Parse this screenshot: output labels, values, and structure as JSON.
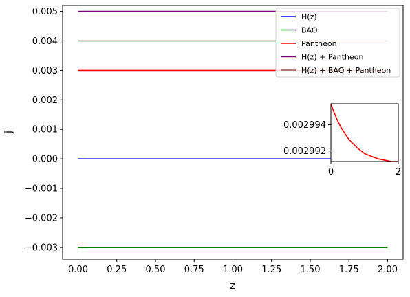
{
  "chart_data": {
    "type": "line",
    "main": {
      "xlabel": "z",
      "ylabel": "j",
      "xlim": [
        -0.1,
        2.1
      ],
      "ylim": [
        -0.0034,
        0.0052
      ],
      "xticks": [
        0.0,
        0.25,
        0.5,
        0.75,
        1.0,
        1.25,
        1.5,
        1.75,
        2.0
      ],
      "xtick_labels": [
        "0.00",
        "0.25",
        "0.50",
        "0.75",
        "1.00",
        "1.25",
        "1.50",
        "1.75",
        "2.00"
      ],
      "yticks": [
        -0.003,
        -0.002,
        -0.001,
        0.0,
        0.001,
        0.002,
        0.003,
        0.004,
        0.005
      ],
      "ytick_labels": [
        "−0.003",
        "−0.002",
        "−0.001",
        "0.000",
        "0.001",
        "0.002",
        "0.003",
        "0.004",
        "0.005"
      ],
      "grid": false,
      "legend_position": "top-right",
      "series": [
        {
          "name": "H(z)",
          "color": "#0000ff",
          "x": [
            0.0,
            2.0
          ],
          "y": [
            0.0,
            0.0
          ]
        },
        {
          "name": "BAO",
          "color": "#008000",
          "x": [
            0.0,
            2.0
          ],
          "y": [
            -0.003,
            -0.003
          ]
        },
        {
          "name": "Pantheon",
          "color": "#ff0000",
          "x": [
            0.0,
            2.0
          ],
          "y": [
            0.003,
            0.003
          ]
        },
        {
          "name": "H(z) + Pantheon",
          "color": "#800080",
          "x": [
            0.0,
            2.0
          ],
          "y": [
            0.005,
            0.005
          ]
        },
        {
          "name": "H(z) + BAO + Pantheon",
          "color": "#8c564b",
          "x": [
            0.0,
            2.0
          ],
          "y": [
            0.004,
            0.004
          ]
        }
      ]
    },
    "inset": {
      "xlim": [
        0,
        2
      ],
      "ylim": [
        0.0029912,
        0.0029956
      ],
      "xticks": [
        0,
        2
      ],
      "xtick_labels": [
        "0",
        "2"
      ],
      "yticks": [
        0.002992,
        0.002994
      ],
      "ytick_labels": [
        "0.002992",
        "0.002994"
      ],
      "series": [
        {
          "color": "#ff0000",
          "x": [
            0.0,
            0.1,
            0.2,
            0.3,
            0.4,
            0.5,
            0.6,
            0.8,
            1.0,
            1.2,
            1.4,
            1.6,
            1.8,
            2.0
          ],
          "y": [
            0.0029956,
            0.0029949,
            0.0029943,
            0.0029938,
            0.0029934,
            0.002993,
            0.0029927,
            0.0029922,
            0.0029918,
            0.0029916,
            0.0029914,
            0.0029913,
            0.0029912,
            0.0029912
          ]
        }
      ]
    }
  }
}
